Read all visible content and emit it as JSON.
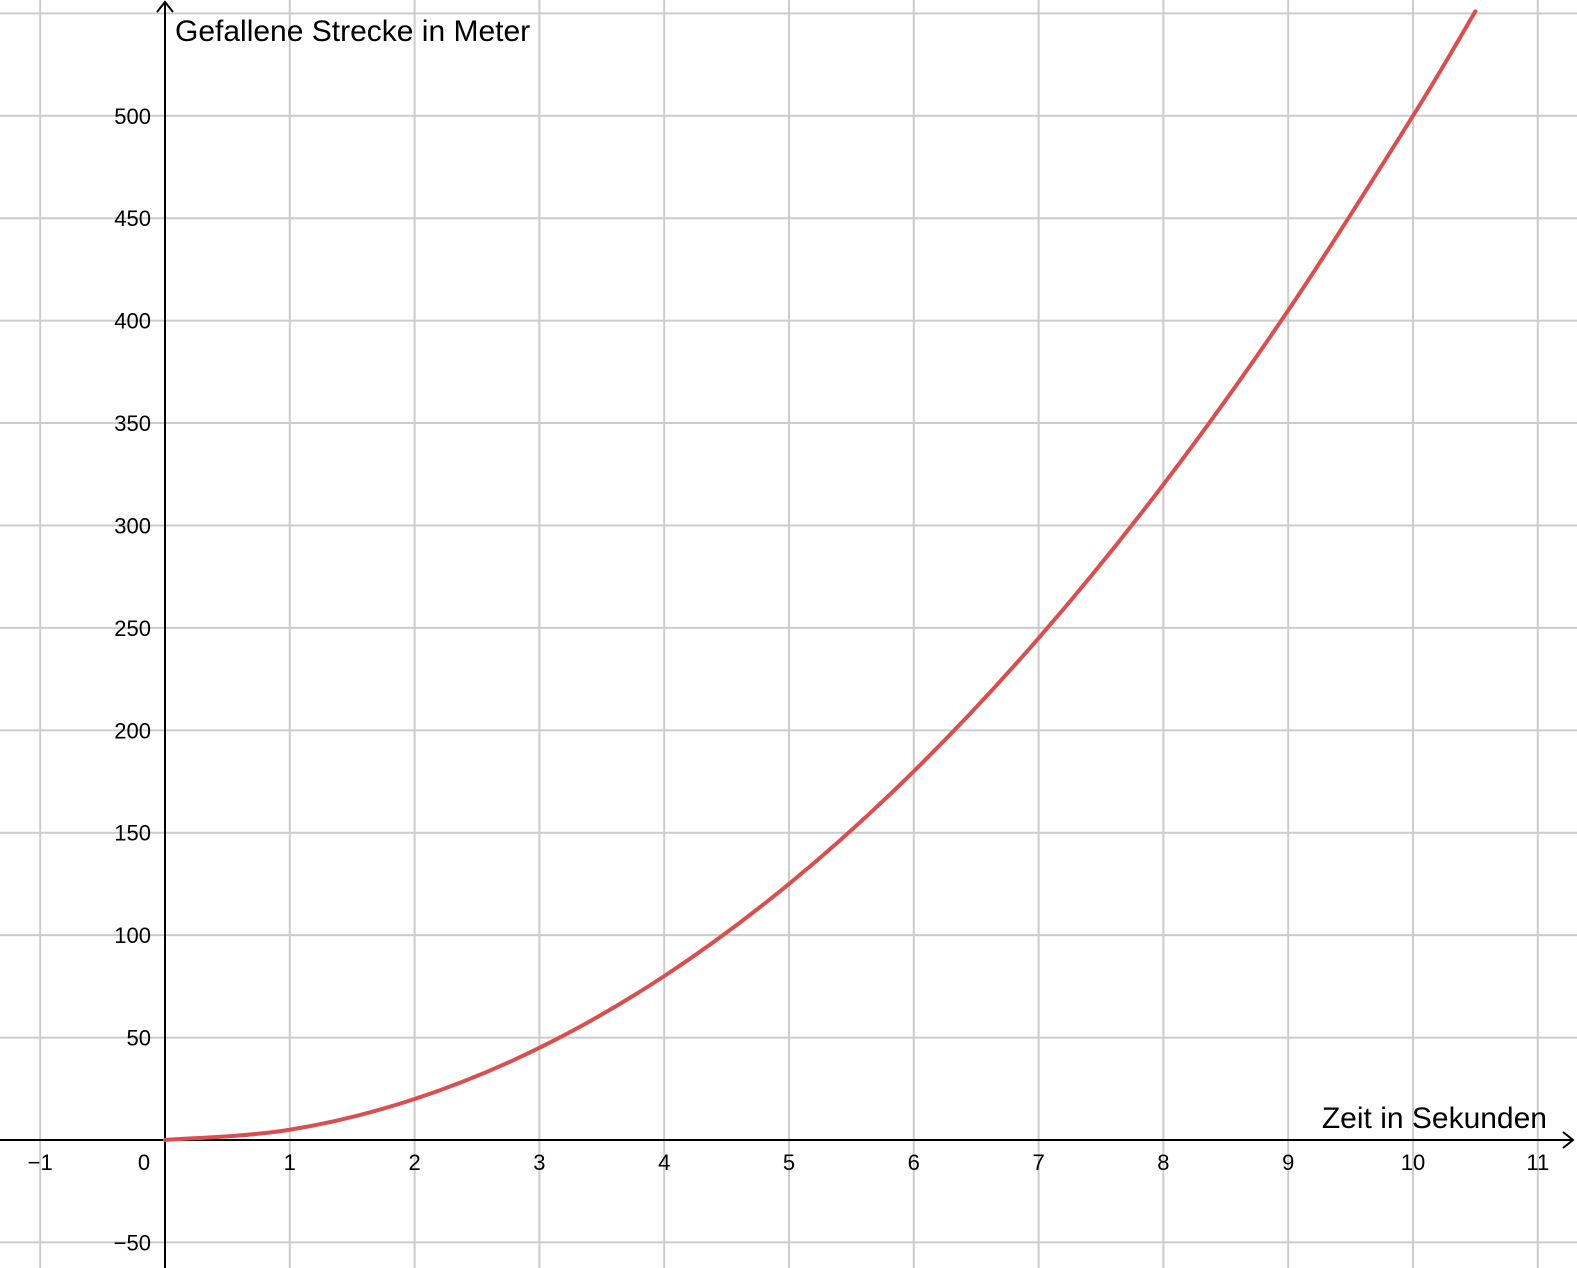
{
  "chart_data": {
    "type": "line",
    "xlabel": "Zeit in Sekunden",
    "ylabel": "Gefallene Strecke in Meter",
    "xlim": [
      -1.3,
      11.25
    ],
    "ylim": [
      -60,
      555
    ],
    "x_ticks": [
      -1,
      0,
      1,
      2,
      3,
      4,
      5,
      6,
      7,
      8,
      9,
      10,
      11
    ],
    "y_ticks": [
      -50,
      50,
      100,
      150,
      200,
      250,
      300,
      350,
      400,
      450,
      500
    ],
    "x_tick_labels": [
      "−1",
      "0",
      "1",
      "2",
      "3",
      "4",
      "5",
      "6",
      "7",
      "8",
      "9",
      "10",
      "11"
    ],
    "y_tick_labels": [
      "−50",
      "50",
      "100",
      "150",
      "200",
      "250",
      "300",
      "350",
      "400",
      "450",
      "500"
    ],
    "grid": true,
    "series": [
      {
        "color": "#d94f4f",
        "points": [
          {
            "x": 0,
            "y": 0
          },
          {
            "x": 1,
            "y": 5
          },
          {
            "x": 2,
            "y": 20
          },
          {
            "x": 3,
            "y": 45
          },
          {
            "x": 4,
            "y": 80
          },
          {
            "x": 5,
            "y": 125
          },
          {
            "x": 6,
            "y": 180
          },
          {
            "x": 7,
            "y": 245
          },
          {
            "x": 8,
            "y": 320
          },
          {
            "x": 9,
            "y": 405
          },
          {
            "x": 10,
            "y": 500
          },
          {
            "x": 10.5,
            "y": 551
          }
        ]
      }
    ],
    "colors": {
      "grid": "#cccccc",
      "axis": "#000000",
      "curve": "#d94f4f"
    }
  }
}
